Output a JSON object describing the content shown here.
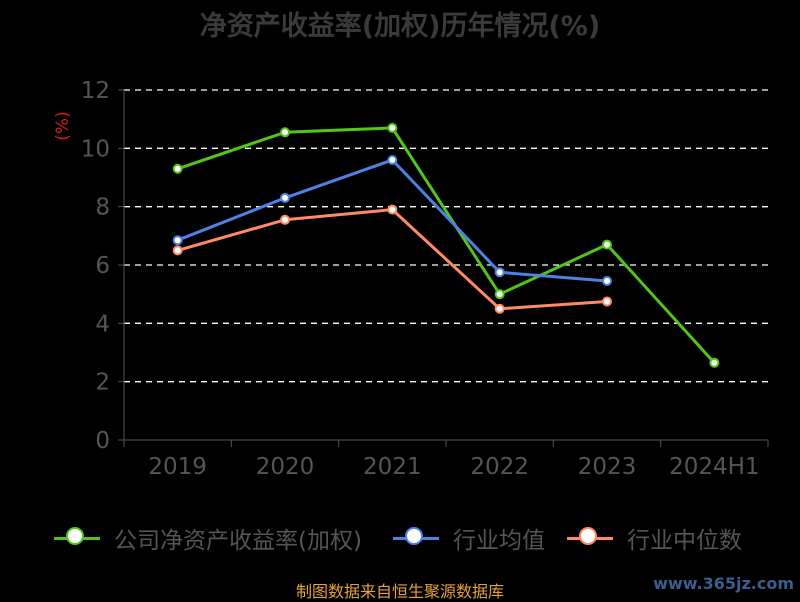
{
  "chart_data": {
    "type": "line",
    "title": "净资产收益率(加权)历年情况(%)",
    "ylabel": "(%)",
    "xlabel": "",
    "categories": [
      "2019",
      "2020",
      "2021",
      "2022",
      "2023",
      "2024H1"
    ],
    "ylim": [
      0,
      12
    ],
    "yticks": [
      0,
      2,
      4,
      6,
      8,
      10,
      12
    ],
    "grid": true,
    "legend_position": "bottom",
    "series": [
      {
        "name": "公司净资产收益率(加权)",
        "color": "#52c41a",
        "values": [
          9.3,
          10.55,
          10.7,
          5.0,
          6.7,
          2.65
        ]
      },
      {
        "name": "行业均值",
        "color": "#4f81e4",
        "values": [
          6.85,
          8.3,
          9.6,
          5.75,
          5.45,
          null
        ]
      },
      {
        "name": "行业中位数",
        "color": "#ff8a65",
        "values": [
          6.5,
          7.55,
          7.9,
          4.5,
          4.75,
          null
        ]
      }
    ]
  },
  "footer": {
    "source": "制图数据来自恒生聚源数据库",
    "watermark": "www.365jz.com"
  }
}
